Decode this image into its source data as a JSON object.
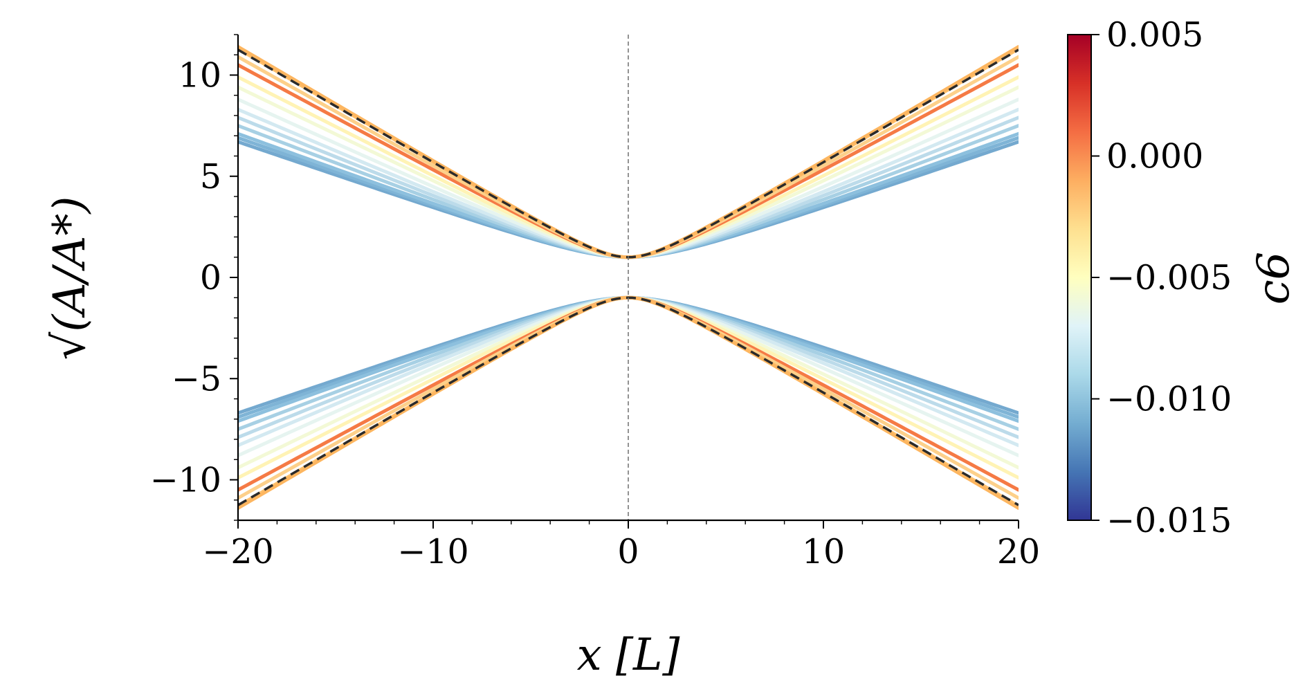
{
  "chart_data": {
    "type": "line",
    "xlabel": "x [L]",
    "ylabel": "√(A/A*)",
    "xlim": [
      -20,
      20
    ],
    "ylim": [
      -12,
      12
    ],
    "xticks": [
      -20,
      -10,
      0,
      10,
      20
    ],
    "xtick_labels": [
      "−20",
      "−10",
      "0",
      "10",
      "20"
    ],
    "yticks": [
      -10,
      -5,
      0,
      5,
      10
    ],
    "ytick_labels": [
      "−10",
      "−5",
      "0",
      "5",
      "10"
    ],
    "vertical_reference_line": 0,
    "colorbar": {
      "label": "c6",
      "range": [
        -0.015,
        0.005
      ],
      "ticks": [
        0.005,
        0.0,
        -0.005,
        -0.01,
        -0.015
      ],
      "tick_labels": [
        "0.005",
        "0.000",
        "−0.005",
        "−0.010",
        "−0.015"
      ],
      "colormap": [
        "#313695",
        "#4575b4",
        "#74add1",
        "#abd9e9",
        "#e0f3f8",
        "#ffffbf",
        "#fee090",
        "#fdae61",
        "#f46d43",
        "#d73027",
        "#a50026"
      ]
    },
    "series": [
      {
        "c6": -0.0105,
        "end_value": 6.7,
        "color": "#74a9cf"
      },
      {
        "c6": -0.0102,
        "end_value": 6.9,
        "color": "#7fb4d6"
      },
      {
        "c6": -0.0098,
        "end_value": 7.1,
        "color": "#8dc0de"
      },
      {
        "c6": -0.0093,
        "end_value": 7.5,
        "color": "#a7d0e4"
      },
      {
        "c6": -0.0087,
        "end_value": 7.9,
        "color": "#bcdbea"
      },
      {
        "c6": -0.008,
        "end_value": 8.3,
        "color": "#d3e9f1"
      },
      {
        "c6": -0.007,
        "end_value": 8.8,
        "color": "#e6f4f0"
      },
      {
        "c6": -0.0055,
        "end_value": 9.4,
        "color": "#f3f9d6"
      },
      {
        "c6": -0.0035,
        "end_value": 9.9,
        "color": "#fff3b5"
      },
      {
        "c6": -0.0015,
        "end_value": 10.5,
        "color": "#f57a45"
      },
      {
        "c6": -0.0008,
        "end_value": 10.9,
        "color": "#fdd08a"
      },
      {
        "c6": -0.0003,
        "end_value": 11.3,
        "color": "#fdbf6b"
      },
      {
        "c6": 0.0,
        "end_value": 11.4,
        "color": "#fdb660"
      }
    ],
    "reference_curve": {
      "style": "dashed",
      "color": "#2b2b2b",
      "end_value": 11.25
    }
  }
}
